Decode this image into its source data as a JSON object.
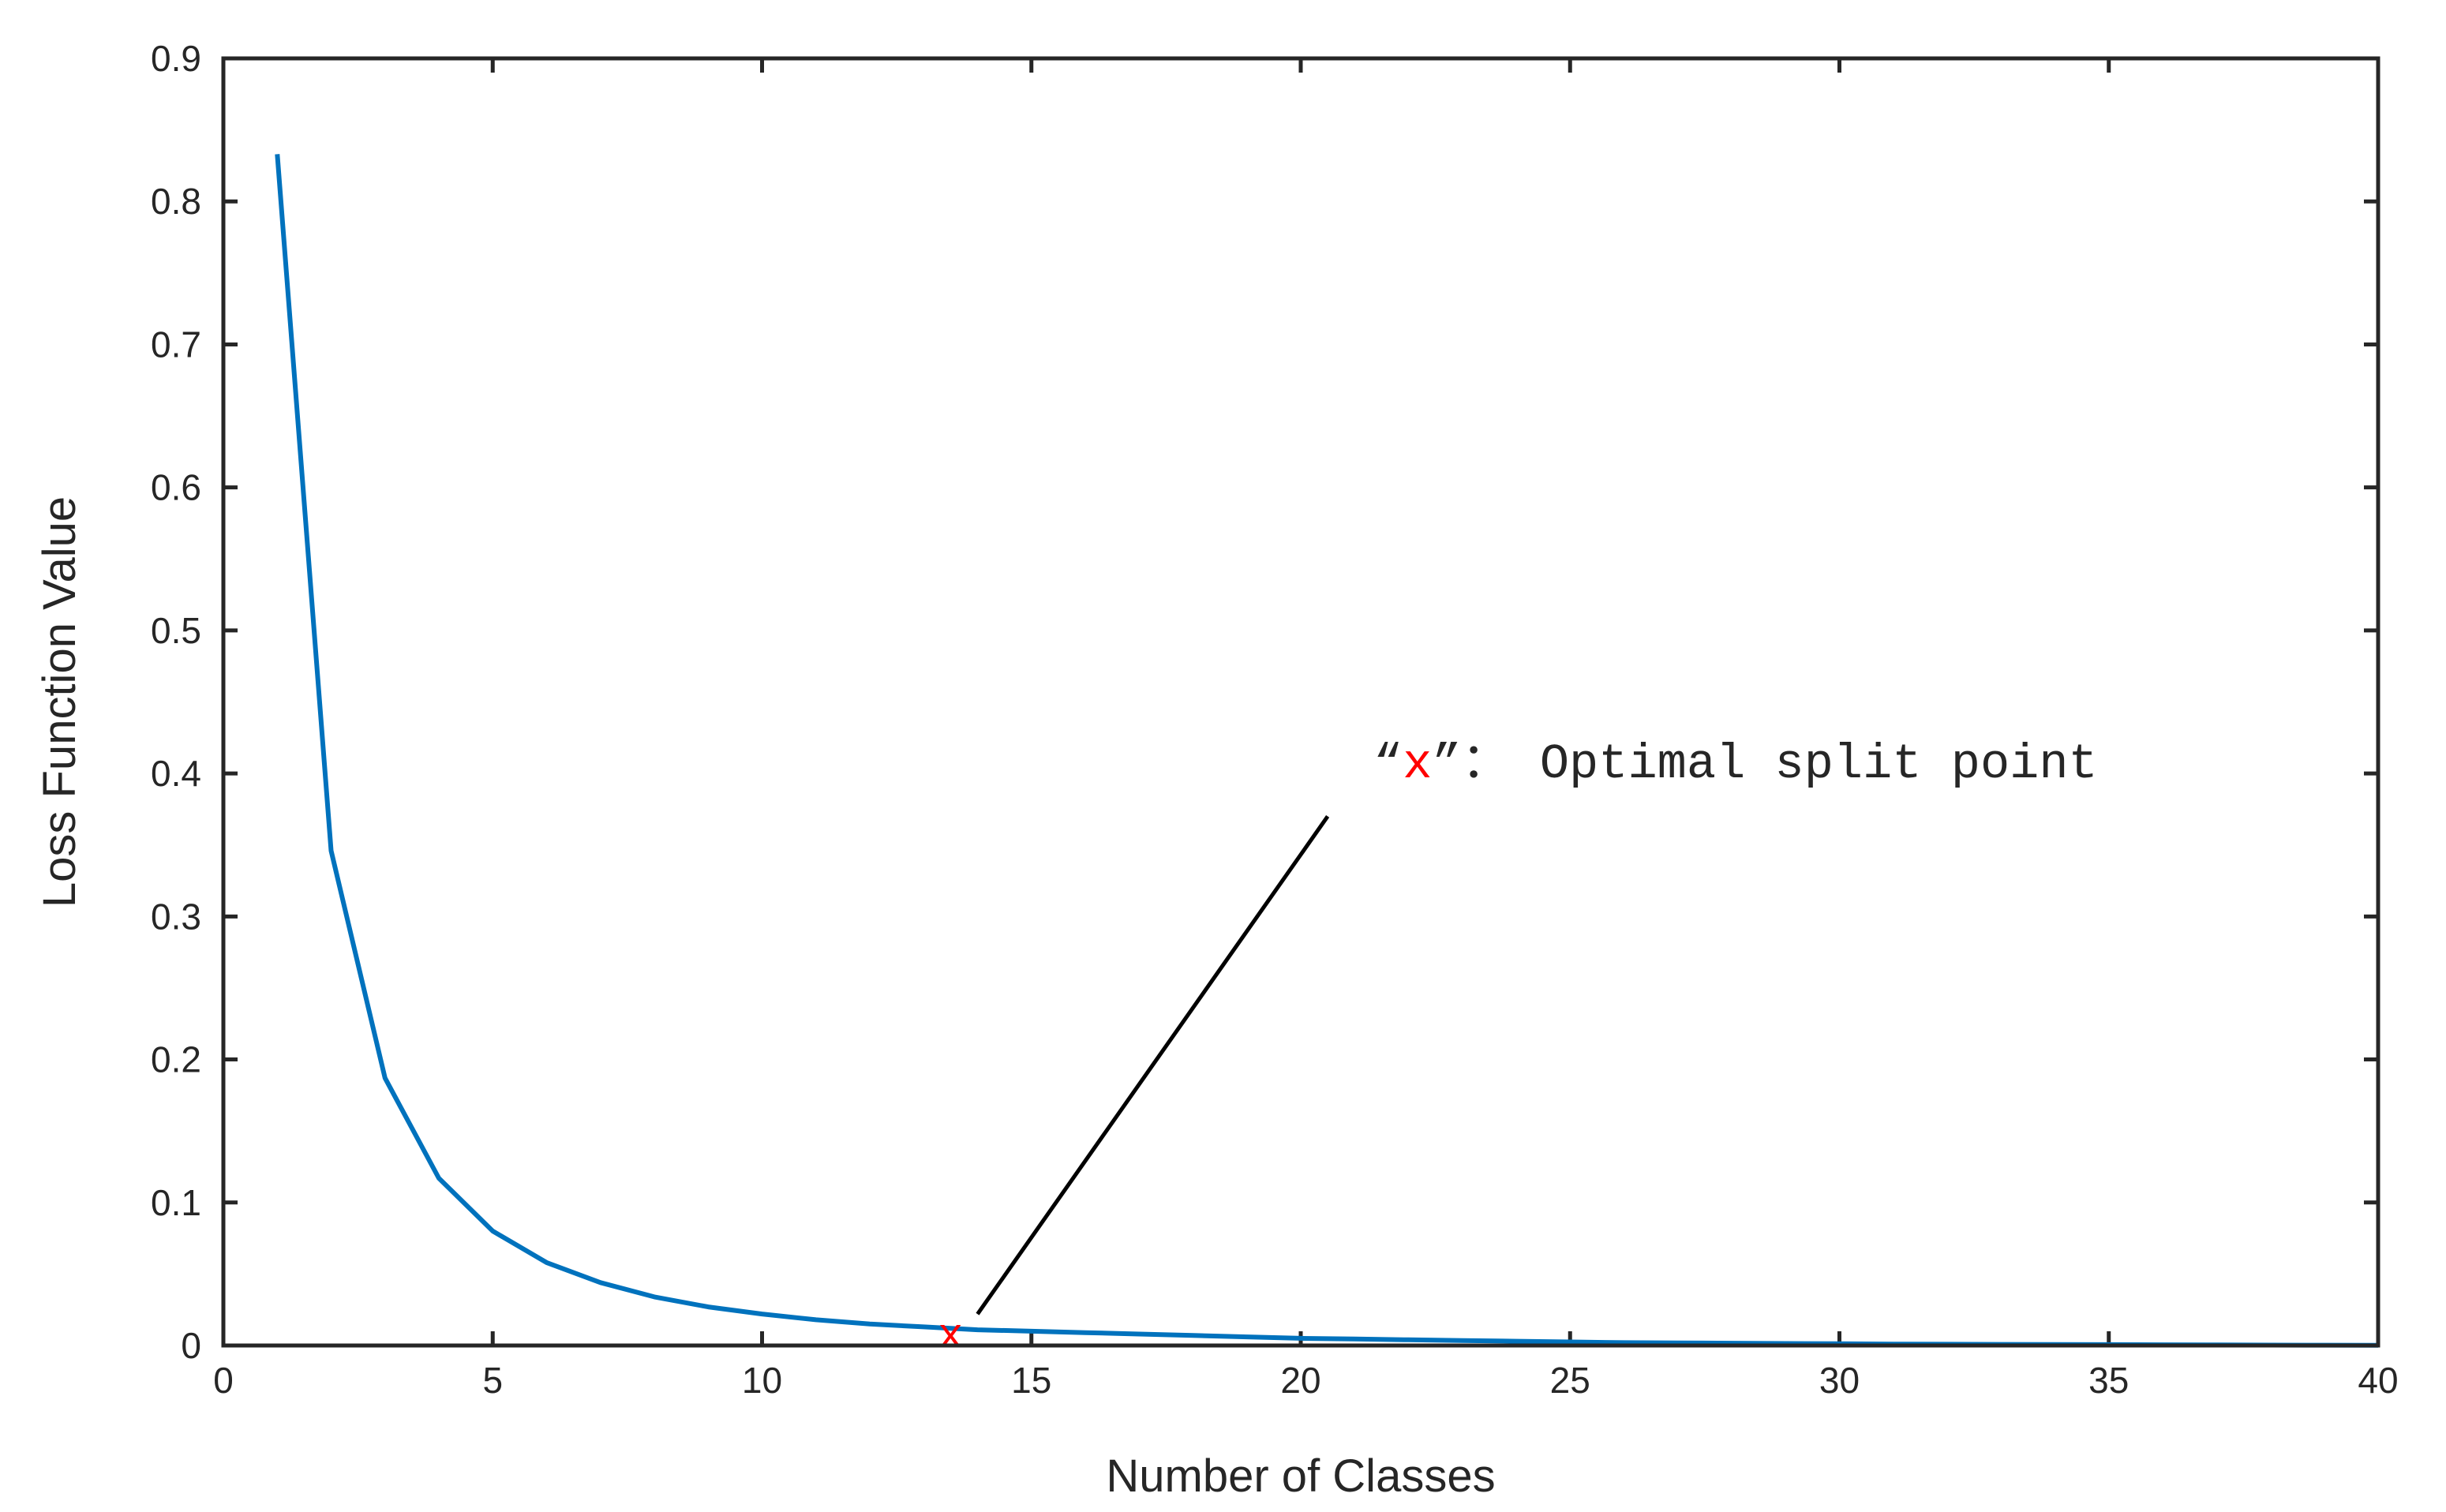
{
  "chart_data": {
    "type": "line",
    "title": "",
    "xlabel": "Number of Classes",
    "ylabel": "Loss Function Value",
    "xlim": [
      0,
      40
    ],
    "ylim": [
      0,
      0.9
    ],
    "xticks": [
      0,
      5,
      10,
      15,
      20,
      25,
      30,
      35,
      40
    ],
    "yticks": [
      0,
      0.1,
      0.2,
      0.3,
      0.4,
      0.5,
      0.6,
      0.7,
      0.8,
      0.9
    ],
    "xtick_labels": [
      "0",
      "5",
      "10",
      "15",
      "20",
      "25",
      "30",
      "35",
      "40"
    ],
    "ytick_labels": [
      "0",
      "0.1",
      "0.2",
      "0.3",
      "0.4",
      "0.5",
      "0.6",
      "0.7",
      "0.8",
      "0.9"
    ],
    "grid": false,
    "series": [
      {
        "color": "#0072bd",
        "x": [
          1,
          2,
          3,
          4,
          5,
          6,
          7,
          8,
          9,
          10,
          11,
          12,
          13,
          14,
          15,
          16,
          17,
          18,
          19,
          20,
          21,
          22,
          23,
          24,
          25,
          26,
          27,
          28,
          29,
          30,
          31,
          32,
          33,
          34,
          35,
          36,
          37,
          38,
          39,
          40
        ],
        "values": [
          0.833,
          0.346,
          0.187,
          0.117,
          0.08,
          0.058,
          0.044,
          0.034,
          0.027,
          0.022,
          0.018,
          0.015,
          0.013,
          0.011,
          0.01,
          0.009,
          0.008,
          0.007,
          0.006,
          0.005,
          0.0045,
          0.004,
          0.0035,
          0.003,
          0.0025,
          0.002,
          0.0018,
          0.0016,
          0.0014,
          0.0012,
          0.001,
          0.0009,
          0.0008,
          0.0007,
          0.0006,
          0.0005,
          0.0004,
          0.0003,
          0.0002,
          0.0001
        ]
      }
    ],
    "optimal_point": {
      "x": 13.5,
      "y": 0.006,
      "marker": "x",
      "color": "#ff0000"
    },
    "annotation": {
      "open_quote": "“",
      "marker_text": "x",
      "close_rest": "”： Optimal split point",
      "arrow_start": {
        "x": 20.5,
        "y": 0.37
      },
      "arrow_end": {
        "x": 14,
        "y": 0.022
      }
    }
  }
}
